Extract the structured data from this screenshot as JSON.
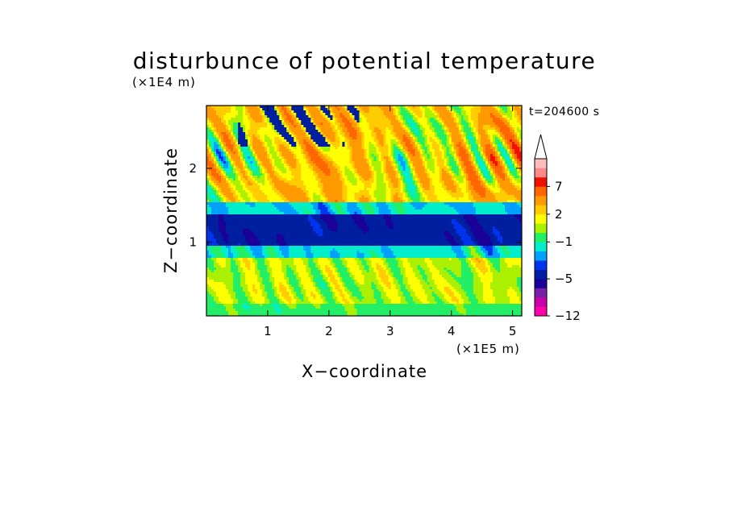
{
  "chart_data": {
    "type": "heatmap",
    "title": "disturbunce of potential temperature",
    "xlabel": "X−coordinate",
    "ylabel": "Z−coordinate",
    "x_unit": "(×1E5 m)",
    "y_unit": "(×1E4 m)",
    "time_label": "t=204600 s",
    "xlim": [
      0,
      5.15
    ],
    "ylim": [
      0,
      2.85
    ],
    "x_ticks": [
      "1",
      "2",
      "3",
      "4",
      "5"
    ],
    "x_tick_values": [
      1,
      2,
      3,
      4,
      5
    ],
    "y_ticks": [
      "1",
      "2"
    ],
    "y_tick_values": [
      1,
      2
    ],
    "colorbar": {
      "extend_max": true,
      "labels": [
        {
          "text": "7",
          "value": 7
        },
        {
          "text": "2",
          "value": 2
        },
        {
          "text": "−1",
          "value": -1
        },
        {
          "text": "−5",
          "value": -5
        },
        {
          "text": "−12",
          "value": -12
        }
      ],
      "levels": [
        {
          "min": -12,
          "max": -10,
          "color": "#ff00aa"
        },
        {
          "min": -10,
          "max": -8,
          "color": "#cc00aa"
        },
        {
          "min": -8,
          "max": -6,
          "color": "#7a1fa8"
        },
        {
          "min": -6,
          "max": -5,
          "color": "#1a0099"
        },
        {
          "min": -5,
          "max": -4,
          "color": "#001ea0"
        },
        {
          "min": -4,
          "max": -3,
          "color": "#0033ee"
        },
        {
          "min": -3,
          "max": -2,
          "color": "#00a0ff"
        },
        {
          "min": -2,
          "max": -1,
          "color": "#00eecc"
        },
        {
          "min": -1,
          "max": 0,
          "color": "#22ee66"
        },
        {
          "min": 0,
          "max": 1,
          "color": "#aaf000"
        },
        {
          "min": 1,
          "max": 2,
          "color": "#ffff00"
        },
        {
          "min": 2,
          "max": 3,
          "color": "#ffcc00"
        },
        {
          "min": 3,
          "max": 5,
          "color": "#ff9900"
        },
        {
          "min": 5,
          "max": 7,
          "color": "#ff6600"
        },
        {
          "min": 7,
          "max": 9,
          "color": "#ee1100"
        },
        {
          "min": 9,
          "max": 11,
          "color": "#ff8888"
        },
        {
          "min": 11,
          "max": 13,
          "color": "#ffbbbb"
        }
      ]
    }
  }
}
